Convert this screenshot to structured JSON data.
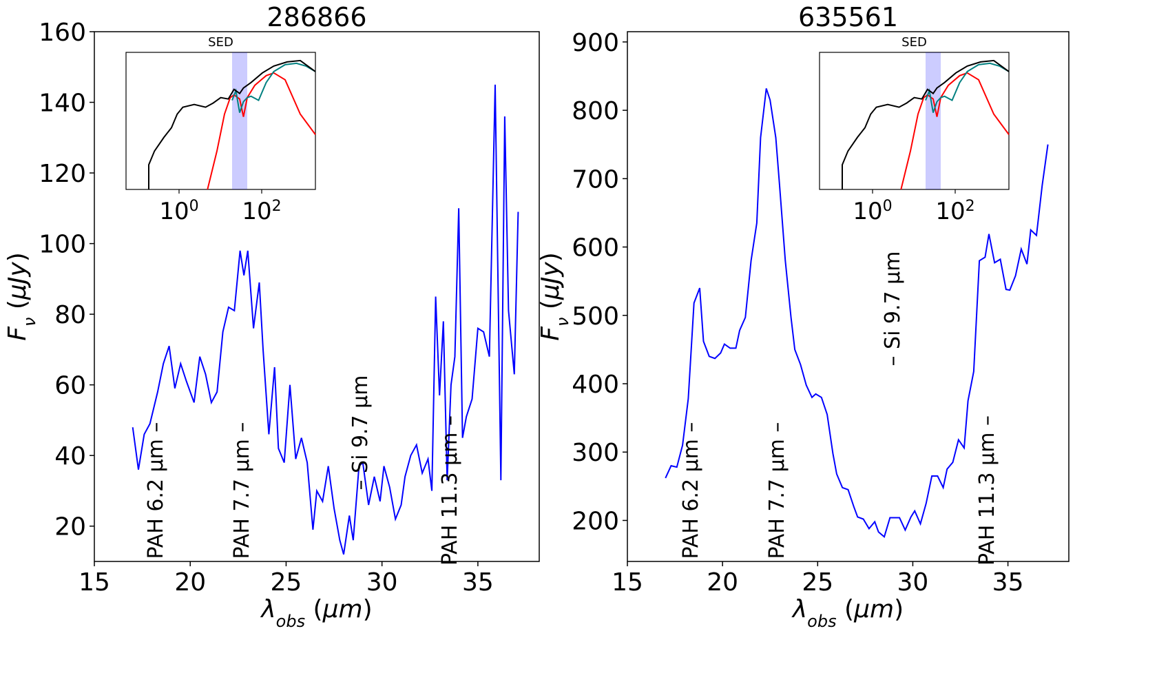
{
  "chart_data": [
    {
      "type": "line",
      "title": "286866",
      "xlabel": "λ_obs (μm)",
      "ylabel": "F_ν (μJy)",
      "xlim": [
        15,
        38.2
      ],
      "ylim": [
        10,
        160
      ],
      "xticks": [
        15,
        20,
        25,
        30,
        35
      ],
      "yticks": [
        20,
        40,
        60,
        80,
        100,
        120,
        140,
        160
      ],
      "grid": false,
      "series": [
        {
          "color": "#0000ff",
          "x": [
            17.0,
            17.3,
            17.6,
            17.9,
            18.3,
            18.6,
            18.9,
            19.2,
            19.5,
            19.8,
            20.2,
            20.5,
            20.8,
            21.1,
            21.4,
            21.7,
            22.0,
            22.3,
            22.6,
            22.8,
            23.0,
            23.3,
            23.6,
            23.8,
            24.1,
            24.4,
            24.6,
            24.9,
            25.2,
            25.5,
            25.8,
            26.1,
            26.4,
            26.6,
            26.9,
            27.2,
            27.5,
            27.8,
            28.0,
            28.3,
            28.5,
            28.8,
            29.0,
            29.3,
            29.6,
            29.9,
            30.1,
            30.4,
            30.7,
            31.0,
            31.2,
            31.5,
            31.8,
            32.1,
            32.4,
            32.6,
            32.8,
            33.0,
            33.2,
            33.4,
            33.6,
            33.8,
            34.0,
            34.2,
            34.4,
            34.7,
            35.0,
            35.3,
            35.6,
            35.9,
            36.2,
            36.4,
            36.6,
            36.9,
            37.1
          ],
          "y": [
            48,
            36,
            46,
            49,
            58,
            66,
            71,
            59,
            66,
            61,
            55,
            68,
            63,
            55,
            58,
            75,
            82,
            81,
            98,
            91,
            98,
            76,
            89,
            70,
            46,
            65,
            42,
            38,
            60,
            39,
            45,
            38,
            19,
            30,
            27,
            37,
            25,
            16,
            12,
            23,
            16,
            37,
            38,
            26,
            34,
            27,
            37,
            31,
            22,
            26,
            34,
            40,
            43,
            35,
            39,
            30,
            85,
            57,
            78,
            33,
            60,
            68,
            110,
            45,
            51,
            56,
            76,
            75,
            68,
            145,
            33,
            136,
            81,
            63,
            109
          ]
        }
      ],
      "annotations": [
        "PAH 6.2 μm –",
        "PAH 7.7 μm –",
        "– Si 9.7 μm",
        "PAH 11.3 μm –"
      ],
      "inset": {
        "title": "SED",
        "xscale": "log",
        "xticklabels": [
          "10^0",
          "10^2"
        ],
        "shaded_band": [
          15,
          37
        ],
        "shaded_color": "#0000ff",
        "series_colors": [
          "#000000",
          "#ff0000",
          "#008080"
        ]
      }
    },
    {
      "type": "line",
      "title": "635561",
      "xlabel": "λ_obs (μm)",
      "ylabel": "F_ν (μJy)",
      "xlim": [
        15,
        38.2
      ],
      "ylim": [
        140,
        915
      ],
      "xticks": [
        15,
        20,
        25,
        30,
        35
      ],
      "yticks": [
        200,
        300,
        400,
        500,
        600,
        700,
        800,
        900
      ],
      "grid": false,
      "series": [
        {
          "color": "#0000ff",
          "x": [
            17.0,
            17.3,
            17.6,
            17.9,
            18.2,
            18.5,
            18.8,
            19.0,
            19.3,
            19.6,
            19.9,
            20.1,
            20.4,
            20.7,
            20.9,
            21.2,
            21.5,
            21.8,
            22.0,
            22.3,
            22.5,
            22.8,
            23.0,
            23.3,
            23.6,
            23.8,
            24.1,
            24.4,
            24.7,
            24.9,
            25.2,
            25.5,
            25.8,
            26.0,
            26.3,
            26.6,
            26.9,
            27.1,
            27.4,
            27.7,
            28.0,
            28.2,
            28.5,
            28.8,
            29.0,
            29.3,
            29.6,
            29.9,
            30.1,
            30.4,
            30.7,
            31.0,
            31.3,
            31.6,
            31.8,
            32.1,
            32.4,
            32.7,
            32.9,
            33.2,
            33.5,
            33.8,
            34.0,
            34.3,
            34.6,
            34.9,
            35.1,
            35.4,
            35.7,
            36.0,
            36.2,
            36.5,
            36.8,
            37.1
          ],
          "y": [
            262,
            280,
            278,
            310,
            378,
            518,
            540,
            462,
            440,
            437,
            445,
            458,
            452,
            452,
            478,
            497,
            580,
            635,
            760,
            832,
            815,
            760,
            690,
            580,
            497,
            450,
            428,
            398,
            380,
            385,
            380,
            355,
            298,
            268,
            248,
            245,
            220,
            205,
            202,
            188,
            198,
            183,
            176,
            204,
            204,
            204,
            186,
            205,
            214,
            195,
            225,
            265,
            265,
            248,
            275,
            285,
            318,
            306,
            375,
            418,
            580,
            585,
            619,
            577,
            582,
            538,
            537,
            558,
            597,
            575,
            625,
            617,
            690,
            750
          ]
        }
      ],
      "annotations": [
        "PAH 6.2 μm –",
        "PAH 7.7 μm –",
        "– Si 9.7 μm",
        "PAH 11.3 μm –"
      ],
      "inset": {
        "title": "SED",
        "xscale": "log",
        "xticklabels": [
          "10^0",
          "10^2"
        ],
        "shaded_band": [
          15,
          37
        ],
        "shaded_color": "#0000ff",
        "series_colors": [
          "#000000",
          "#ff0000",
          "#008080"
        ]
      }
    }
  ]
}
